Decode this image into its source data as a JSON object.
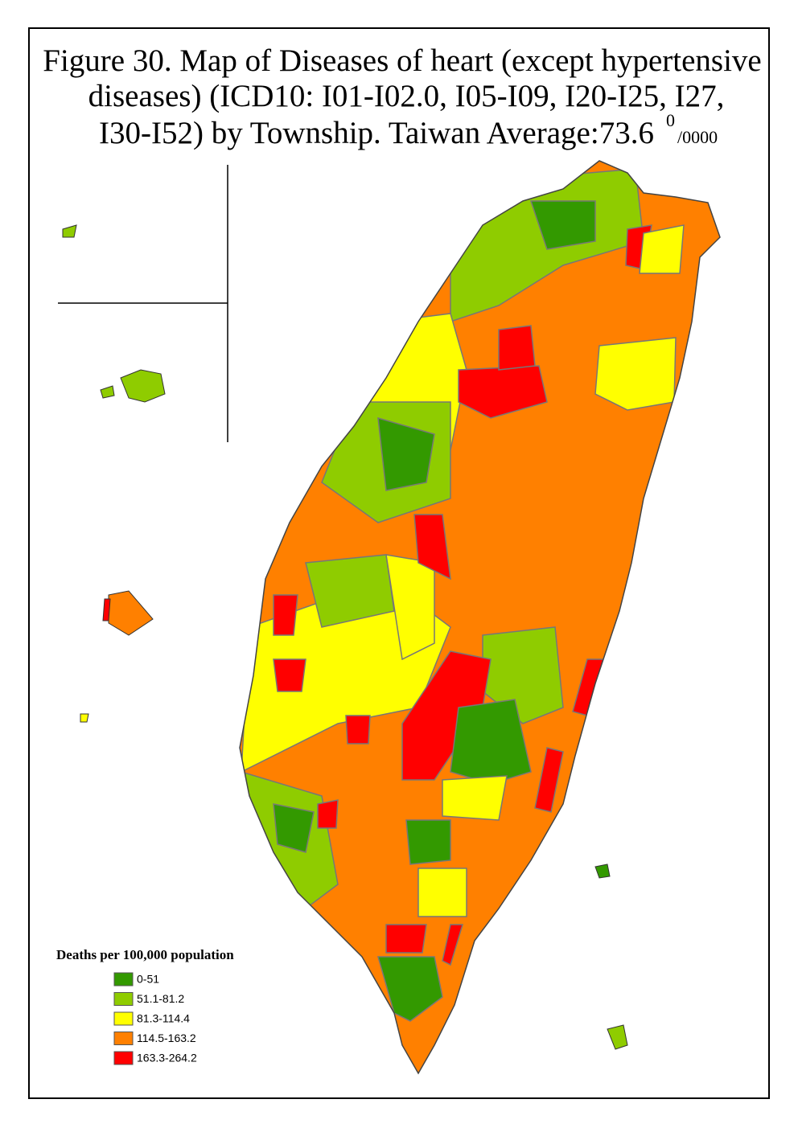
{
  "title": {
    "lines": [
      "Figure 30. Map of Diseases of heart (except hypertensive",
      "diseases) (ICD10: I01-I02.0, I05-I09, I20-I25, I27,",
      "I30-I52) by Township. Taiwan Average:73.6"
    ],
    "unit_top": "0",
    "unit_bottom": "/0000"
  },
  "legend": {
    "title": "Deaths per 100,000 population",
    "items": [
      {
        "label": "0-51",
        "color": "#339900"
      },
      {
        "label": "51.1-81.2",
        "color": "#8fcc00"
      },
      {
        "label": "81.3-114.4",
        "color": "#ffff00"
      },
      {
        "label": "114.5-163.2",
        "color": "#ff8000"
      },
      {
        "label": "163.3-264.2",
        "color": "#ff0000"
      }
    ]
  }
}
